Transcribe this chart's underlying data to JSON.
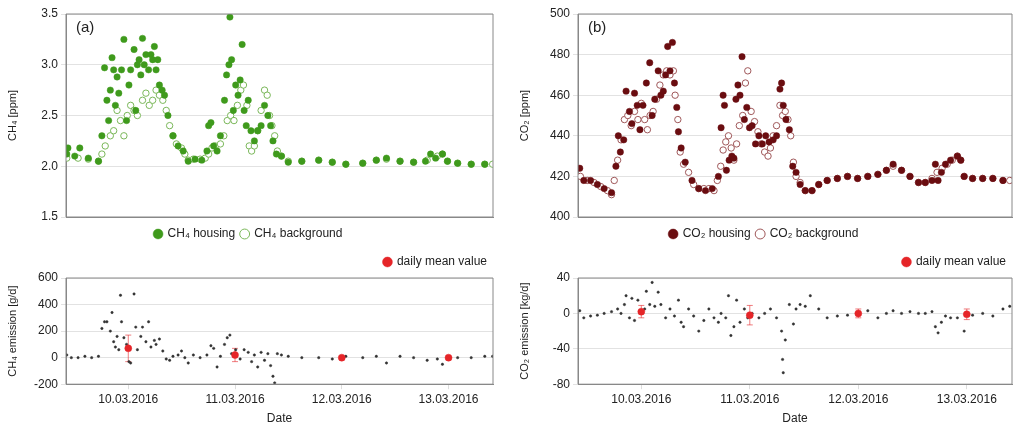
{
  "chart_data": [
    {
      "type": "scatter",
      "ylabel": "CH₄ [ppm]",
      "annotations": [
        "(a)"
      ],
      "xlim": [
        "2016-03-09T10:00",
        "2016-03-13T10:00"
      ],
      "xticks": [
        {
          "value": "2016-03-10",
          "label": null
        },
        {
          "value": "2016-03-11",
          "label": null
        },
        {
          "value": "2016-03-12",
          "label": null
        },
        {
          "value": "2016-03-13",
          "label": null
        }
      ],
      "ylim": [
        1.5,
        3.5
      ],
      "yticks": [
        1.5,
        {
          "value": 2,
          "label": "2.0"
        },
        2.5,
        {
          "value": 3,
          "label": "3.0"
        },
        3.5
      ],
      "grid": "y",
      "legend": "bottom",
      "marker": "circle",
      "tick_labels": "y",
      "series": [
        {
          "name": "CH₄ housing",
          "color": "#3f9a1c",
          "x": [
            "2016-03-09T10:10",
            "2016-03-09T10:26",
            "2016-03-09T11:58",
            "2016-03-09T13:06",
            "2016-03-09T15:01",
            "2016-03-09T17:18",
            "2016-03-09T18:04",
            "2016-03-09T18:40",
            "2016-03-09T19:12",
            "2016-03-09T19:35",
            "2016-03-09T19:58",
            "2016-03-09T20:21",
            "2016-03-09T20:43",
            "2016-03-09T21:06",
            "2016-03-09T21:29",
            "2016-03-09T21:52",
            "2016-03-09T22:29",
            "2016-03-09T23:01",
            "2016-03-09T23:37",
            "2016-03-10T00:09",
            "2016-03-10T00:32",
            "2016-03-10T01:18",
            "2016-03-10T01:41",
            "2016-03-10T02:03",
            "2016-03-10T02:26",
            "2016-03-10T02:49",
            "2016-03-10T03:12",
            "2016-03-10T03:35",
            "2016-03-10T03:58",
            "2016-03-10T04:34",
            "2016-03-10T05:06",
            "2016-03-10T05:29",
            "2016-03-10T05:52",
            "2016-03-10T06:15",
            "2016-03-10T06:38",
            "2016-03-10T07:00",
            "2016-03-10T07:37",
            "2016-03-10T08:09",
            "2016-03-10T08:55",
            "2016-03-10T10:03",
            "2016-03-10T11:12",
            "2016-03-10T12:21",
            "2016-03-10T13:29",
            "2016-03-10T15:01",
            "2016-03-10T16:32",
            "2016-03-10T17:41",
            "2016-03-10T18:04",
            "2016-03-10T18:35",
            "2016-03-10T19:12",
            "2016-03-10T19:58",
            "2016-03-10T20:43",
            "2016-03-10T21:38",
            "2016-03-10T22:06",
            "2016-03-10T22:38",
            "2016-03-10T22:51",
            "2016-03-10T23:14",
            "2016-03-10T23:37",
            "2016-03-11T00:09",
            "2016-03-11T00:41",
            "2016-03-11T01:09",
            "2016-03-11T01:36",
            "2016-03-11T02:03",
            "2016-03-11T02:31",
            "2016-03-11T02:58",
            "2016-03-11T03:35",
            "2016-03-11T04:21",
            "2016-03-11T05:06",
            "2016-03-11T05:52",
            "2016-03-11T06:38",
            "2016-03-11T07:23",
            "2016-03-11T08:00",
            "2016-03-11T08:32",
            "2016-03-11T09:18",
            "2016-03-11T10:26",
            "2016-03-11T11:58",
            "2016-03-11T15:01",
            "2016-03-11T18:49",
            "2016-03-11T21:52",
            "2016-03-12T00:55",
            "2016-03-12T04:43",
            "2016-03-12T07:46",
            "2016-03-12T10:03",
            "2016-03-12T13:06",
            "2016-03-12T16:09",
            "2016-03-12T18:49",
            "2016-03-12T19:58",
            "2016-03-12T21:06",
            "2016-03-12T22:38",
            "2016-03-12T23:46",
            "2016-03-13T02:03",
            "2016-03-13T05:06",
            "2016-03-13T08:09"
          ],
          "values": [
            2.12,
            2.18,
            2.1,
            2.18,
            2.08,
            2.05,
            2.3,
            2.97,
            2.65,
            2.45,
            2.75,
            3.07,
            2.95,
            2.6,
            2.88,
            2.72,
            2.95,
            3.25,
            2.45,
            2.8,
            2.95,
            3.15,
            2.55,
            3.0,
            3.05,
            2.9,
            3.26,
            3.0,
            3.1,
            2.95,
            3.1,
            3.05,
            3.18,
            2.95,
            3.05,
            2.8,
            2.75,
            2.7,
            2.5,
            2.3,
            2.2,
            2.15,
            2.05,
            2.07,
            2.06,
            2.15,
            2.4,
            2.43,
            2.2,
            2.15,
            2.3,
            2.65,
            2.9,
            3.0,
            3.47,
            3.05,
            2.55,
            2.8,
            2.7,
            2.85,
            3.2,
            2.55,
            2.4,
            2.65,
            2.35,
            2.25,
            2.35,
            2.4,
            2.6,
            2.5,
            2.4,
            2.25,
            2.12,
            2.1,
            2.04,
            2.05,
            2.06,
            2.04,
            2.02,
            2.03,
            2.06,
            2.08,
            2.05,
            2.04,
            2.05,
            2.12,
            2.08,
            2.12,
            2.05,
            2.03,
            2.02,
            2.02
          ]
        },
        {
          "name": "CH₄ background",
          "color": "#7bb85a",
          "x": [
            "2016-03-09T10:10",
            "2016-03-09T12:43",
            "2016-03-09T15:01",
            "2016-03-09T17:18",
            "2016-03-09T18:04",
            "2016-03-09T18:49",
            "2016-03-09T19:58",
            "2016-03-09T20:43",
            "2016-03-09T21:29",
            "2016-03-09T22:15",
            "2016-03-09T23:01",
            "2016-03-09T23:46",
            "2016-03-10T00:32",
            "2016-03-10T01:18",
            "2016-03-10T02:03",
            "2016-03-10T03:12",
            "2016-03-10T03:58",
            "2016-03-10T04:43",
            "2016-03-10T05:29",
            "2016-03-10T06:15",
            "2016-03-10T07:00",
            "2016-03-10T07:46",
            "2016-03-10T08:32",
            "2016-03-10T09:18",
            "2016-03-10T10:03",
            "2016-03-10T10:49",
            "2016-03-10T11:58",
            "2016-03-10T12:43",
            "2016-03-10T13:29",
            "2016-03-10T14:38",
            "2016-03-10T16:09",
            "2016-03-10T17:18",
            "2016-03-10T18:04",
            "2016-03-10T18:49",
            "2016-03-10T19:35",
            "2016-03-10T20:43",
            "2016-03-10T21:29",
            "2016-03-10T22:15",
            "2016-03-10T23:01",
            "2016-03-10T23:46",
            "2016-03-11T00:32",
            "2016-03-11T01:18",
            "2016-03-11T01:54",
            "2016-03-11T02:40",
            "2016-03-11T03:12",
            "2016-03-11T03:44",
            "2016-03-11T04:21",
            "2016-03-11T05:06",
            "2016-03-11T05:52",
            "2016-03-11T06:38",
            "2016-03-11T07:14",
            "2016-03-11T07:46",
            "2016-03-11T08:18",
            "2016-03-11T08:55",
            "2016-03-11T09:31",
            "2016-03-11T10:26",
            "2016-03-11T11:58",
            "2016-03-11T15:01",
            "2016-03-11T18:49",
            "2016-03-11T21:52",
            "2016-03-12T00:55",
            "2016-03-12T04:43",
            "2016-03-12T07:46",
            "2016-03-12T10:03",
            "2016-03-12T13:06",
            "2016-03-12T16:09",
            "2016-03-12T19:12",
            "2016-03-12T21:29",
            "2016-03-12T22:38",
            "2016-03-12T23:46",
            "2016-03-13T02:03",
            "2016-03-13T05:06",
            "2016-03-13T08:09",
            "2016-03-13T09:55"
          ],
          "values": [
            2.08,
            2.08,
            2.07,
            2.05,
            2.12,
            2.2,
            2.3,
            2.35,
            2.55,
            2.45,
            2.3,
            2.5,
            2.6,
            2.55,
            2.5,
            2.65,
            2.72,
            2.6,
            2.65,
            2.75,
            2.7,
            2.65,
            2.55,
            2.4,
            2.3,
            2.22,
            2.18,
            2.12,
            2.06,
            2.07,
            2.07,
            2.08,
            2.12,
            2.18,
            2.2,
            2.22,
            2.3,
            2.45,
            2.5,
            2.45,
            2.6,
            2.75,
            2.8,
            2.6,
            2.2,
            2.15,
            2.2,
            2.35,
            2.55,
            2.75,
            2.7,
            2.5,
            2.4,
            2.3,
            2.15,
            2.1,
            2.05,
            2.05,
            2.06,
            2.04,
            2.02,
            2.03,
            2.06,
            2.07,
            2.05,
            2.04,
            2.06,
            2.1,
            2.12,
            2.05,
            2.03,
            2.02,
            2.02,
            2.02
          ]
        }
      ]
    },
    {
      "type": "scatter",
      "xlabel": "Date",
      "ylabel": "CH₄ emission [g/d]",
      "xlim": [
        "2016-03-09T10:00",
        "2016-03-13T10:00"
      ],
      "xticks": [
        {
          "value": "2016-03-10",
          "label": "10.03.2016"
        },
        {
          "value": "2016-03-11",
          "label": "11.03.2016"
        },
        {
          "value": "2016-03-12",
          "label": "12.03.2016"
        },
        {
          "value": "2016-03-13",
          "label": "13.03.2016"
        }
      ],
      "ylim": [
        -200,
        600
      ],
      "yticks": [
        -200,
        0,
        200,
        400,
        600
      ],
      "grid": "y",
      "legend": "top right",
      "marker": "circle",
      "series": [
        {
          "color": "#333333",
          "x": [
            "2016-03-09T10:10",
            "2016-03-09T11:12",
            "2016-03-09T12:43",
            "2016-03-09T14:15",
            "2016-03-09T15:46",
            "2016-03-09T17:18",
            "2016-03-09T18:04",
            "2016-03-09T18:40",
            "2016-03-09T19:12",
            "2016-03-09T19:58",
            "2016-03-09T20:21",
            "2016-03-09T20:43",
            "2016-03-09T21:06",
            "2016-03-09T21:29",
            "2016-03-09T21:52",
            "2016-03-09T22:15",
            "2016-03-09T22:29",
            "2016-03-09T23:01",
            "2016-03-09T23:37",
            "2016-03-10T00:09",
            "2016-03-10T00:32",
            "2016-03-10T01:18",
            "2016-03-10T01:41",
            "2016-03-10T02:03",
            "2016-03-10T02:49",
            "2016-03-10T03:12",
            "2016-03-10T03:58",
            "2016-03-10T04:34",
            "2016-03-10T05:06",
            "2016-03-10T05:52",
            "2016-03-10T06:15",
            "2016-03-10T07:00",
            "2016-03-10T07:46",
            "2016-03-10T08:32",
            "2016-03-10T09:18",
            "2016-03-10T10:03",
            "2016-03-10T11:12",
            "2016-03-10T11:58",
            "2016-03-10T12:43",
            "2016-03-10T13:29",
            "2016-03-10T14:38",
            "2016-03-10T16:09",
            "2016-03-10T17:41",
            "2016-03-10T18:35",
            "2016-03-10T19:12",
            "2016-03-10T19:58",
            "2016-03-10T20:43",
            "2016-03-10T21:38",
            "2016-03-10T22:15",
            "2016-03-10T22:51",
            "2016-03-10T23:14",
            "2016-03-11T00:09",
            "2016-03-11T01:09",
            "2016-03-11T02:03",
            "2016-03-11T02:58",
            "2016-03-11T03:44",
            "2016-03-11T04:21",
            "2016-03-11T05:06",
            "2016-03-11T05:52",
            "2016-03-11T06:38",
            "2016-03-11T07:23",
            "2016-03-11T08:00",
            "2016-03-11T08:32",
            "2016-03-11T08:55",
            "2016-03-11T09:31",
            "2016-03-11T10:26",
            "2016-03-11T11:58",
            "2016-03-11T15:01",
            "2016-03-11T18:49",
            "2016-03-11T21:52",
            "2016-03-12T00:55",
            "2016-03-12T04:43",
            "2016-03-12T07:46",
            "2016-03-12T10:03",
            "2016-03-12T13:06",
            "2016-03-12T16:09",
            "2016-03-12T19:12",
            "2016-03-12T21:29",
            "2016-03-12T22:38",
            "2016-03-13T02:03",
            "2016-03-13T05:06",
            "2016-03-13T08:09",
            "2016-03-13T09:55"
          ],
          "values": [
            20,
            0,
            0,
            10,
            0,
            10,
            220,
            270,
            270,
            200,
            340,
            120,
            80,
            160,
            60,
            470,
            270,
            150,
            100,
            -30,
            -40,
            480,
            230,
            60,
            160,
            230,
            120,
            270,
            80,
            130,
            100,
            140,
            50,
            -10,
            -20,
            10,
            20,
            50,
            0,
            -40,
            20,
            0,
            20,
            90,
            70,
            -70,
            10,
            100,
            150,
            170,
            30,
            60,
            -10,
            60,
            40,
            -30,
            20,
            -70,
            40,
            -20,
            30,
            -60,
            -140,
            -190,
            30,
            20,
            10,
            0,
            0,
            -10,
            10,
            0,
            10,
            -40,
            10,
            0,
            -20,
            -10,
            -50,
            0,
            0,
            10,
            10
          ]
        },
        {
          "name": "daily mean value",
          "color": "#e52528",
          "x": [
            "2016-03-10T00:00",
            "2016-03-11T00:00",
            "2016-03-12T00:00",
            "2016-03-13T00:00"
          ],
          "values": [
            70,
            20,
            0,
            0
          ],
          "errors": [
            100,
            50,
            null,
            null
          ]
        }
      ]
    },
    {
      "type": "scatter",
      "ylabel": "CO₂ [ppm]",
      "annotations": [
        "(b)"
      ],
      "xlim": [
        "2016-03-09T10:00",
        "2016-03-13T10:00"
      ],
      "xticks": [
        {
          "value": "2016-03-10",
          "label": null
        },
        {
          "value": "2016-03-11",
          "label": null
        },
        {
          "value": "2016-03-12",
          "label": null
        },
        {
          "value": "2016-03-13",
          "label": null
        }
      ],
      "ylim": [
        400,
        500
      ],
      "yticks": [
        400,
        420,
        440,
        460,
        480,
        500
      ],
      "grid": "y",
      "legend": "bottom",
      "marker": "circle",
      "tick_labels": "y",
      "series": [
        {
          "name": "CO₂ housing",
          "color": "#6a0d10",
          "x": [
            "2016-03-09T10:23",
            "2016-03-09T11:17",
            "2016-03-09T12:47",
            "2016-03-09T14:17",
            "2016-03-09T15:47",
            "2016-03-09T17:25",
            "2016-03-09T18:23",
            "2016-03-09T18:55",
            "2016-03-09T19:22",
            "2016-03-09T20:07",
            "2016-03-09T20:38",
            "2016-03-09T21:23",
            "2016-03-09T21:55",
            "2016-03-09T22:30",
            "2016-03-09T23:06",
            "2016-03-09T23:42",
            "2016-03-10T00:22",
            "2016-03-10T01:07",
            "2016-03-10T01:52",
            "2016-03-10T02:24",
            "2016-03-10T02:59",
            "2016-03-10T03:44",
            "2016-03-10T04:20",
            "2016-03-10T04:52",
            "2016-03-10T05:23",
            "2016-03-10T05:50",
            "2016-03-10T06:21",
            "2016-03-10T06:53",
            "2016-03-10T07:20",
            "2016-03-10T07:51",
            "2016-03-10T08:13",
            "2016-03-10T08:49",
            "2016-03-10T09:43",
            "2016-03-10T11:13",
            "2016-03-10T12:43",
            "2016-03-10T14:12",
            "2016-03-10T15:42",
            "2016-03-10T17:03",
            "2016-03-10T17:39",
            "2016-03-10T18:06",
            "2016-03-10T18:24",
            "2016-03-10T18:50",
            "2016-03-10T19:26",
            "2016-03-10T20:02",
            "2016-03-10T20:29",
            "2016-03-10T20:56",
            "2016-03-10T21:23",
            "2016-03-10T21:50",
            "2016-03-10T22:17",
            "2016-03-10T22:48",
            "2016-03-10T23:20",
            "2016-03-10T23:56",
            "2016-03-11T00:31",
            "2016-03-11T01:16",
            "2016-03-11T02:01",
            "2016-03-11T02:46",
            "2016-03-11T03:31",
            "2016-03-11T04:16",
            "2016-03-11T05:10",
            "2016-03-11T05:55",
            "2016-03-11T06:40",
            "2016-03-11T07:02",
            "2016-03-11T07:24",
            "2016-03-11T08:00",
            "2016-03-11T08:45",
            "2016-03-11T09:30",
            "2016-03-11T10:14",
            "2016-03-11T11:08",
            "2016-03-11T12:16",
            "2016-03-11T13:46",
            "2016-03-11T15:15",
            "2016-03-11T17:07",
            "2016-03-11T19:22",
            "2016-03-11T21:37",
            "2016-03-11T23:51",
            "2016-03-12T02:06",
            "2016-03-12T04:20",
            "2016-03-12T06:13",
            "2016-03-12T07:42",
            "2016-03-12T09:34",
            "2016-03-12T11:26",
            "2016-03-12T13:19",
            "2016-03-12T14:49",
            "2016-03-12T16:18",
            "2016-03-12T17:03",
            "2016-03-12T17:39",
            "2016-03-12T18:23",
            "2016-03-12T19:17",
            "2016-03-12T20:25",
            "2016-03-12T21:55",
            "2016-03-12T22:40",
            "2016-03-12T23:25",
            "2016-03-13T01:17",
            "2016-03-13T03:31",
            "2016-03-13T05:46",
            "2016-03-13T08:00"
          ],
          "values": [
            424,
            418,
            418,
            416,
            414,
            412,
            425,
            440,
            432,
            438,
            462,
            452,
            446,
            461,
            455,
            443,
            455,
            466,
            476,
            450,
            458,
            472,
            460,
            462,
            470,
            484,
            472,
            486,
            466,
            454,
            442,
            434,
            427,
            418,
            414,
            413,
            414,
            420,
            444,
            460,
            455,
            423,
            428,
            430,
            429,
            458,
            465,
            460,
            479,
            448,
            454,
            444,
            445,
            436,
            440,
            436,
            440,
            437,
            438,
            440,
            463,
            466,
            455,
            448,
            443,
            425,
            422,
            416,
            413,
            413,
            416,
            418,
            419,
            420,
            419,
            420,
            421,
            423,
            426,
            423,
            420,
            417,
            417,
            418,
            426,
            418,
            422,
            426,
            428,
            430,
            428,
            420,
            419,
            419,
            419,
            418
          ]
        },
        {
          "name": "CO₂ background",
          "color": "#a0585a",
          "x": [
            "2016-03-09T10:32",
            "2016-03-09T12:02",
            "2016-03-09T13:32",
            "2016-03-09T15:02",
            "2016-03-09T16:31",
            "2016-03-09T17:25",
            "2016-03-09T18:01",
            "2016-03-09T18:46",
            "2016-03-09T19:31",
            "2016-03-09T20:16",
            "2016-03-09T21:01",
            "2016-03-09T21:46",
            "2016-03-09T22:30",
            "2016-03-09T23:15",
            "2016-03-10T00:00",
            "2016-03-10T00:45",
            "2016-03-10T01:21",
            "2016-03-10T01:57",
            "2016-03-10T02:37",
            "2016-03-10T03:22",
            "2016-03-10T04:07",
            "2016-03-10T04:52",
            "2016-03-10T05:37",
            "2016-03-10T06:21",
            "2016-03-10T07:06",
            "2016-03-10T07:29",
            "2016-03-10T08:05",
            "2016-03-10T08:36",
            "2016-03-10T09:21",
            "2016-03-10T10:28",
            "2016-03-10T11:35",
            "2016-03-10T12:43",
            "2016-03-10T13:50",
            "2016-03-10T14:57",
            "2016-03-10T16:05",
            "2016-03-10T16:49",
            "2016-03-10T17:34",
            "2016-03-10T18:06",
            "2016-03-10T18:41",
            "2016-03-10T19:17",
            "2016-03-10T19:53",
            "2016-03-10T20:29",
            "2016-03-10T21:05",
            "2016-03-10T21:41",
            "2016-03-10T22:26",
            "2016-03-10T23:02",
            "2016-03-10T23:33",
            "2016-03-11T00:18",
            "2016-03-11T01:03",
            "2016-03-11T01:48",
            "2016-03-11T02:32",
            "2016-03-11T03:17",
            "2016-03-11T04:02",
            "2016-03-11T04:34",
            "2016-03-11T05:10",
            "2016-03-11T05:55",
            "2016-03-11T06:40",
            "2016-03-11T07:15",
            "2016-03-11T07:51",
            "2016-03-11T08:27",
            "2016-03-11T09:03",
            "2016-03-11T09:39",
            "2016-03-11T10:14",
            "2016-03-11T11:08",
            "2016-03-11T12:16",
            "2016-03-11T13:46",
            "2016-03-11T15:15",
            "2016-03-11T17:07",
            "2016-03-11T19:22",
            "2016-03-11T21:37",
            "2016-03-11T23:51",
            "2016-03-12T02:06",
            "2016-03-12T04:20",
            "2016-03-12T06:13",
            "2016-03-12T07:42",
            "2016-03-12T09:34",
            "2016-03-12T11:26",
            "2016-03-12T13:19",
            "2016-03-12T14:49",
            "2016-03-12T16:18",
            "2016-03-12T17:25",
            "2016-03-12T18:32",
            "2016-03-12T19:40",
            "2016-03-12T20:47",
            "2016-03-12T21:55",
            "2016-03-12T22:40",
            "2016-03-12T23:25",
            "2016-03-13T01:17",
            "2016-03-13T03:31",
            "2016-03-13T05:46",
            "2016-03-13T08:00",
            "2016-03-13T09:30"
          ],
          "values": [
            420,
            418,
            417,
            415,
            413,
            411,
            418,
            428,
            438,
            448,
            450,
            445,
            452,
            448,
            456,
            448,
            443,
            450,
            452,
            458,
            465,
            470,
            472,
            470,
            472,
            460,
            448,
            432,
            426,
            422,
            416,
            414,
            414,
            414,
            413,
            418,
            425,
            433,
            437,
            440,
            434,
            428,
            436,
            445,
            450,
            466,
            472,
            452,
            447,
            442,
            436,
            432,
            430,
            434,
            440,
            445,
            455,
            450,
            452,
            448,
            440,
            427,
            420,
            417,
            413,
            413,
            416,
            418,
            419,
            420,
            419,
            420,
            421,
            423,
            425,
            423,
            420,
            417,
            417,
            419,
            422,
            424,
            426,
            428,
            430,
            428,
            420,
            419,
            419,
            419,
            418,
            418
          ]
        }
      ]
    },
    {
      "type": "scatter",
      "xlabel": "Date",
      "ylabel": "CO₂ emission [kg/d]",
      "xlim": [
        "2016-03-09T10:00",
        "2016-03-13T10:00"
      ],
      "xticks": [
        {
          "value": "2016-03-10",
          "label": "10.03.2016"
        },
        {
          "value": "2016-03-11",
          "label": "11.03.2016"
        },
        {
          "value": "2016-03-12",
          "label": "12.03.2016"
        },
        {
          "value": "2016-03-13",
          "label": "13.03.2016"
        }
      ],
      "ylim": [
        -80,
        40
      ],
      "yticks": [
        -80,
        -40,
        0,
        40
      ],
      "grid": "y",
      "legend": "top right",
      "marker": "circle",
      "series": [
        {
          "color": "#333333",
          "x": [
            "2016-03-09T10:23",
            "2016-03-09T11:17",
            "2016-03-09T12:47",
            "2016-03-09T14:17",
            "2016-03-09T15:47",
            "2016-03-09T17:25",
            "2016-03-09T18:46",
            "2016-03-09T19:31",
            "2016-03-09T20:16",
            "2016-03-09T20:38",
            "2016-03-09T21:23",
            "2016-03-09T21:55",
            "2016-03-09T22:30",
            "2016-03-09T23:15",
            "2016-03-10T00:45",
            "2016-03-10T01:07",
            "2016-03-10T01:52",
            "2016-03-10T02:24",
            "2016-03-10T02:59",
            "2016-03-10T03:44",
            "2016-03-10T04:20",
            "2016-03-10T05:23",
            "2016-03-10T06:21",
            "2016-03-10T07:20",
            "2016-03-10T08:13",
            "2016-03-10T08:49",
            "2016-03-10T09:21",
            "2016-03-10T10:28",
            "2016-03-10T11:35",
            "2016-03-10T12:43",
            "2016-03-10T13:50",
            "2016-03-10T14:57",
            "2016-03-10T16:05",
            "2016-03-10T17:03",
            "2016-03-10T17:39",
            "2016-03-10T18:41",
            "2016-03-10T19:17",
            "2016-03-10T19:49",
            "2016-03-10T20:29",
            "2016-03-10T21:05",
            "2016-03-10T21:50",
            "2016-03-10T22:48",
            "2016-03-10T23:33",
            "2016-03-11T00:31",
            "2016-03-11T02:01",
            "2016-03-11T03:17",
            "2016-03-11T04:34",
            "2016-03-11T05:55",
            "2016-03-11T07:02",
            "2016-03-11T07:15",
            "2016-03-11T07:24",
            "2016-03-11T07:51",
            "2016-03-11T08:45",
            "2016-03-11T09:39",
            "2016-03-11T10:14",
            "2016-03-11T11:08",
            "2016-03-11T12:16",
            "2016-03-11T13:23",
            "2016-03-11T15:15",
            "2016-03-11T17:07",
            "2016-03-11T19:22",
            "2016-03-11T21:37",
            "2016-03-12T02:06",
            "2016-03-12T04:20",
            "2016-03-12T06:13",
            "2016-03-12T07:42",
            "2016-03-12T09:34",
            "2016-03-12T11:26",
            "2016-03-12T13:19",
            "2016-03-12T14:49",
            "2016-03-12T16:18",
            "2016-03-12T17:03",
            "2016-03-12T17:39",
            "2016-03-12T18:23",
            "2016-03-12T19:17",
            "2016-03-12T20:25",
            "2016-03-12T21:55",
            "2016-03-12T23:25",
            "2016-03-13T01:17",
            "2016-03-13T03:31",
            "2016-03-13T05:46",
            "2016-03-13T08:00",
            "2016-03-13T09:30"
          ],
          "values": [
            3,
            -5,
            -3,
            -2,
            0,
            2,
            5,
            0,
            10,
            20,
            -5,
            17,
            -8,
            15,
            5,
            25,
            10,
            35,
            8,
            24,
            10,
            -5,
            5,
            -3,
            15,
            -10,
            -15,
            5,
            -3,
            -20,
            -8,
            5,
            -5,
            -10,
            0,
            -5,
            20,
            -25,
            -15,
            15,
            -10,
            5,
            -5,
            0,
            -5,
            0,
            5,
            -5,
            -20,
            -52,
            -67,
            -30,
            10,
            -12,
            5,
            10,
            8,
            20,
            5,
            -5,
            -3,
            -2,
            3,
            -5,
            0,
            3,
            0,
            2,
            0,
            0,
            2,
            -15,
            -22,
            -10,
            -3,
            -5,
            -5,
            -20,
            -2,
            0,
            -3,
            5,
            8
          ]
        },
        {
          "name": "daily mean value",
          "color": "#e52528",
          "x": [
            "2016-03-10T00:00",
            "2016-03-11T00:00",
            "2016-03-12T00:00",
            "2016-03-13T00:00"
          ],
          "values": [
            2,
            -2,
            0,
            -1
          ],
          "errors": [
            7,
            11,
            5,
            6
          ]
        }
      ]
    }
  ]
}
